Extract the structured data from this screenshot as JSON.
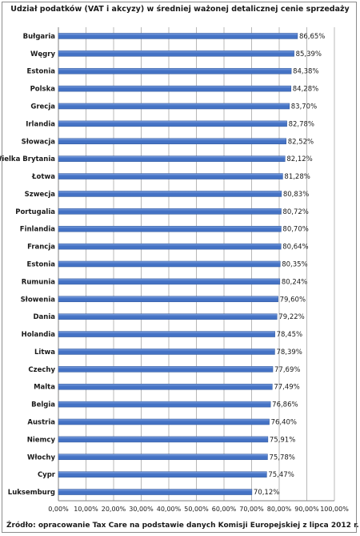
{
  "chart_data": {
    "type": "bar",
    "orientation": "horizontal",
    "title": "Udział podatków (VAT i akcyzy) w średniej ważonej detalicznej cenie sprzedaży",
    "categories": [
      "Bułgaria",
      "Węgry",
      "Estonia",
      "Polska",
      "Grecja",
      "Irlandia",
      "Słowacja",
      "Wielka Brytania",
      "Łotwa",
      "Szwecja",
      "Portugalia",
      "Finlandia",
      "Francja",
      "Estonia",
      "Rumunia",
      "Słowenia",
      "Dania",
      "Holandia",
      "Litwa",
      "Czechy",
      "Malta",
      "Belgia",
      "Austria",
      "Niemcy",
      "Włochy",
      "Cypr",
      "Luksemburg"
    ],
    "values": [
      86.65,
      85.39,
      84.38,
      84.28,
      83.7,
      82.78,
      82.52,
      82.12,
      81.28,
      80.83,
      80.72,
      80.7,
      80.64,
      80.35,
      80.24,
      79.6,
      79.22,
      78.45,
      78.39,
      77.69,
      77.49,
      76.86,
      76.4,
      75.91,
      75.78,
      75.47,
      70.12
    ],
    "value_labels": [
      "86,65%",
      "85,39%",
      "84,38%",
      "84,28%",
      "83,70%",
      "82,78%",
      "82,52%",
      "82,12%",
      "81,28%",
      "80,83%",
      "80,72%",
      "80,70%",
      "80,64%",
      "80,35%",
      "80,24%",
      "79,60%",
      "79,22%",
      "78,45%",
      "78,39%",
      "77,69%",
      "77,49%",
      "76,86%",
      "76,40%",
      "75,91%",
      "75,78%",
      "75,47%",
      "70,12%"
    ],
    "x_ticks": [
      "0,00%",
      "10,00%",
      "20,00%",
      "30,00%",
      "40,00%",
      "50,00%",
      "60,00%",
      "70,00%",
      "80,00%",
      "90,00%",
      "100,00%"
    ],
    "xlim": [
      0,
      100
    ],
    "grid": true,
    "bar_color": "#4472c4",
    "bar_color_light": "#7da0e0",
    "grid_color": "#b8b8b8"
  },
  "source_note": "Źródło: opracowanie Tax Care na podstawie danych Komisji Europejskiej z lipca 2012 r."
}
